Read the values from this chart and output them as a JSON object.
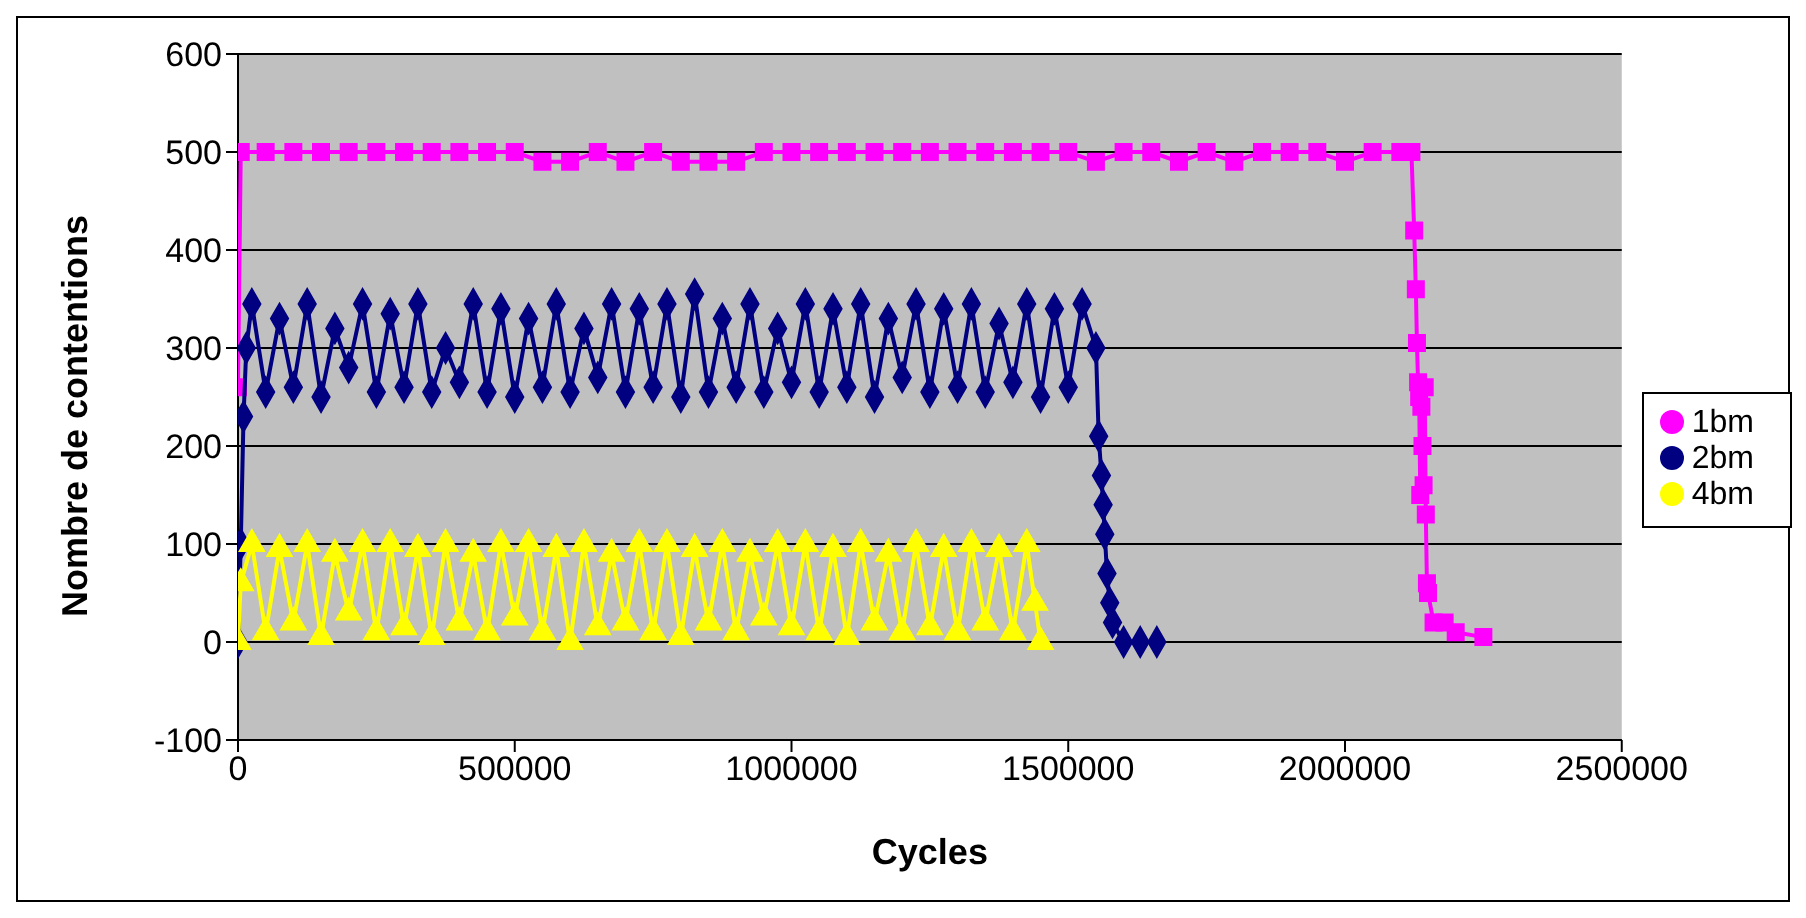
{
  "chart_data": {
    "type": "line",
    "xlabel": "Cycles",
    "ylabel": "Nombre de contentions",
    "xlim": [
      0,
      2500000
    ],
    "xticks": [
      0,
      500000,
      1000000,
      1500000,
      2000000,
      2500000
    ],
    "ylim": [
      -100,
      600
    ],
    "yticks": [
      -100,
      0,
      100,
      200,
      300,
      400,
      500,
      600
    ],
    "grid": "y",
    "legend": "right",
    "line_style": "solid",
    "series": [
      {
        "name": "1bm",
        "color": "#ff00ff",
        "marker": "square",
        "x": [
          0,
          5000,
          50000,
          100000,
          150000,
          200000,
          250000,
          300000,
          350000,
          400000,
          450000,
          500000,
          550000,
          600000,
          650000,
          700000,
          750000,
          800000,
          850000,
          900000,
          950000,
          1000000,
          1050000,
          1100000,
          1150000,
          1200000,
          1250000,
          1300000,
          1350000,
          1400000,
          1450000,
          1500000,
          1550000,
          1600000,
          1650000,
          1700000,
          1750000,
          1800000,
          1850000,
          1900000,
          1950000,
          2000000,
          2050000,
          2100000,
          2120000,
          2125000,
          2128000,
          2130000,
          2132000,
          2134000,
          2136000,
          2138000,
          2140000,
          2142000,
          2144000,
          2146000,
          2148000,
          2150000,
          2160000,
          2180000,
          2200000,
          2250000
        ],
        "values": [
          260,
          500,
          500,
          500,
          500,
          500,
          500,
          500,
          500,
          500,
          500,
          500,
          490,
          490,
          500,
          490,
          500,
          490,
          490,
          490,
          500,
          500,
          500,
          500,
          500,
          500,
          500,
          500,
          500,
          500,
          500,
          500,
          490,
          500,
          500,
          490,
          500,
          490,
          500,
          500,
          500,
          490,
          500,
          500,
          500,
          420,
          360,
          305,
          265,
          250,
          150,
          240,
          200,
          160,
          260,
          130,
          60,
          50,
          20,
          20,
          10,
          5
        ]
      },
      {
        "name": "2bm",
        "color": "#000080",
        "marker": "diamond",
        "x": [
          0,
          5000,
          10000,
          15000,
          25000,
          50000,
          75000,
          100000,
          125000,
          150000,
          175000,
          200000,
          225000,
          250000,
          275000,
          300000,
          325000,
          350000,
          375000,
          400000,
          425000,
          450000,
          475000,
          500000,
          525000,
          550000,
          575000,
          600000,
          625000,
          650000,
          675000,
          700000,
          725000,
          750000,
          775000,
          800000,
          825000,
          850000,
          875000,
          900000,
          925000,
          950000,
          975000,
          1000000,
          1025000,
          1050000,
          1075000,
          1100000,
          1125000,
          1150000,
          1175000,
          1200000,
          1225000,
          1250000,
          1275000,
          1300000,
          1325000,
          1350000,
          1375000,
          1400000,
          1425000,
          1450000,
          1475000,
          1500000,
          1525000,
          1550000,
          1555000,
          1560000,
          1563000,
          1566000,
          1570000,
          1575000,
          1580000,
          1600000,
          1630000,
          1660000
        ],
        "values": [
          0,
          100,
          230,
          300,
          345,
          255,
          330,
          260,
          345,
          250,
          320,
          280,
          345,
          255,
          335,
          260,
          345,
          255,
          300,
          265,
          345,
          255,
          340,
          250,
          330,
          260,
          345,
          255,
          320,
          270,
          345,
          255,
          340,
          260,
          345,
          250,
          355,
          255,
          330,
          260,
          345,
          255,
          320,
          265,
          345,
          255,
          340,
          260,
          345,
          250,
          330,
          270,
          345,
          255,
          340,
          260,
          345,
          255,
          325,
          265,
          345,
          250,
          340,
          260,
          345,
          300,
          210,
          170,
          140,
          110,
          70,
          40,
          20,
          0,
          0,
          0
        ]
      },
      {
        "name": "4bm",
        "color": "#ffff00",
        "marker": "triangle",
        "x": [
          0,
          5000,
          25000,
          50000,
          75000,
          100000,
          125000,
          150000,
          175000,
          200000,
          225000,
          250000,
          275000,
          300000,
          325000,
          350000,
          375000,
          400000,
          425000,
          450000,
          475000,
          500000,
          525000,
          550000,
          575000,
          600000,
          625000,
          650000,
          675000,
          700000,
          725000,
          750000,
          775000,
          800000,
          825000,
          850000,
          875000,
          900000,
          925000,
          950000,
          975000,
          1000000,
          1025000,
          1050000,
          1075000,
          1100000,
          1125000,
          1150000,
          1175000,
          1200000,
          1225000,
          1250000,
          1275000,
          1300000,
          1325000,
          1350000,
          1375000,
          1400000,
          1425000,
          1440000,
          1450000
        ],
        "values": [
          0,
          60,
          100,
          10,
          95,
          20,
          100,
          5,
          90,
          30,
          100,
          10,
          100,
          15,
          95,
          5,
          100,
          20,
          90,
          10,
          100,
          25,
          100,
          10,
          95,
          0,
          100,
          15,
          90,
          20,
          100,
          10,
          100,
          5,
          95,
          20,
          100,
          10,
          90,
          25,
          100,
          15,
          100,
          10,
          95,
          5,
          100,
          20,
          90,
          10,
          100,
          15,
          95,
          10,
          100,
          20,
          95,
          10,
          100,
          40,
          0
        ]
      }
    ]
  }
}
